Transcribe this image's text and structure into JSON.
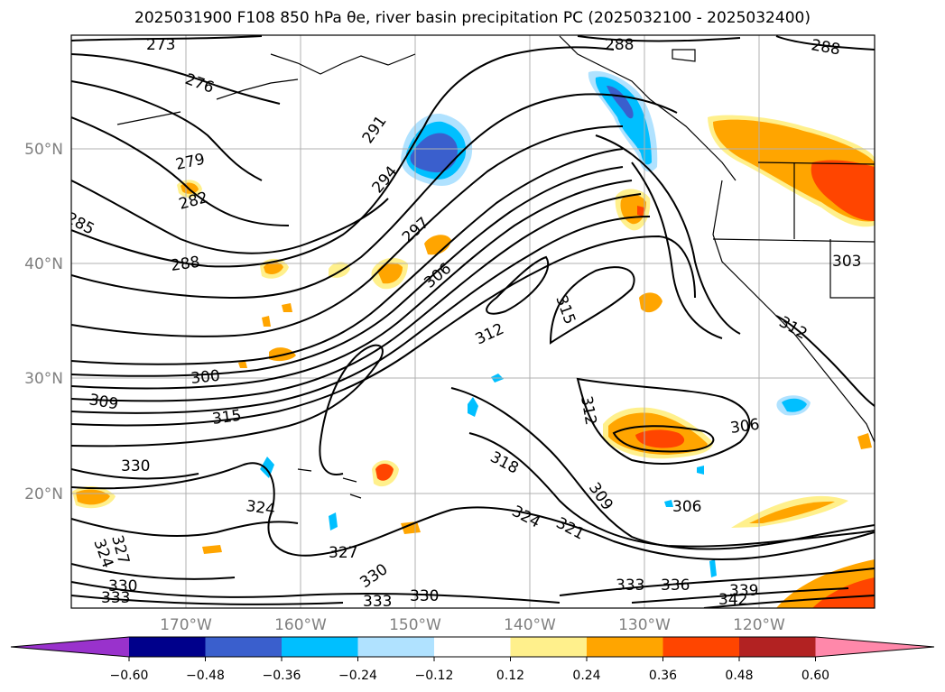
{
  "title": "2025031900 F108 850 hPa θe, river basin precipitation PC (2025032100 - 2025032400)",
  "latitude_labels": [
    "50°N",
    "40°N",
    "30°N",
    "20°N"
  ],
  "longitude_labels": [
    "170°W",
    "160°W",
    "150°W",
    "140°W",
    "130°W",
    "120°W"
  ],
  "contour_labels": [
    "273",
    "276",
    "279",
    "282",
    "285",
    "288",
    "291",
    "294",
    "297",
    "300",
    "306",
    "309",
    "312",
    "315",
    "318",
    "321",
    "324",
    "327",
    "330",
    "333",
    "336",
    "339",
    "342",
    "303",
    "288",
    "288",
    "312",
    "306",
    "306",
    "309",
    "312",
    "315",
    "318",
    "324",
    "327",
    "330",
    "324",
    "330",
    "333"
  ],
  "colorbar": {
    "colors": [
      "#9932cc",
      "#00008b",
      "#3a5fcd",
      "#00bfff",
      "#b0e2ff",
      "#ffffff",
      "#fff08c",
      "#ffa500",
      "#ff4500",
      "#b22222",
      "#ff88aa"
    ],
    "ticks": [
      "−0.60",
      "−0.48",
      "−0.36",
      "−0.24",
      "−0.12",
      "0.12",
      "0.24",
      "0.36",
      "0.48",
      "0.60"
    ]
  },
  "colors": {
    "blue_dark": "#3a5fcd",
    "blue_mid": "#00bfff",
    "blue_light": "#b0e2ff",
    "yellow": "#fff08c",
    "orange": "#ffa500",
    "red_orange": "#ff4500",
    "dark_red": "#b22222",
    "grid": "#b0b0b0"
  }
}
